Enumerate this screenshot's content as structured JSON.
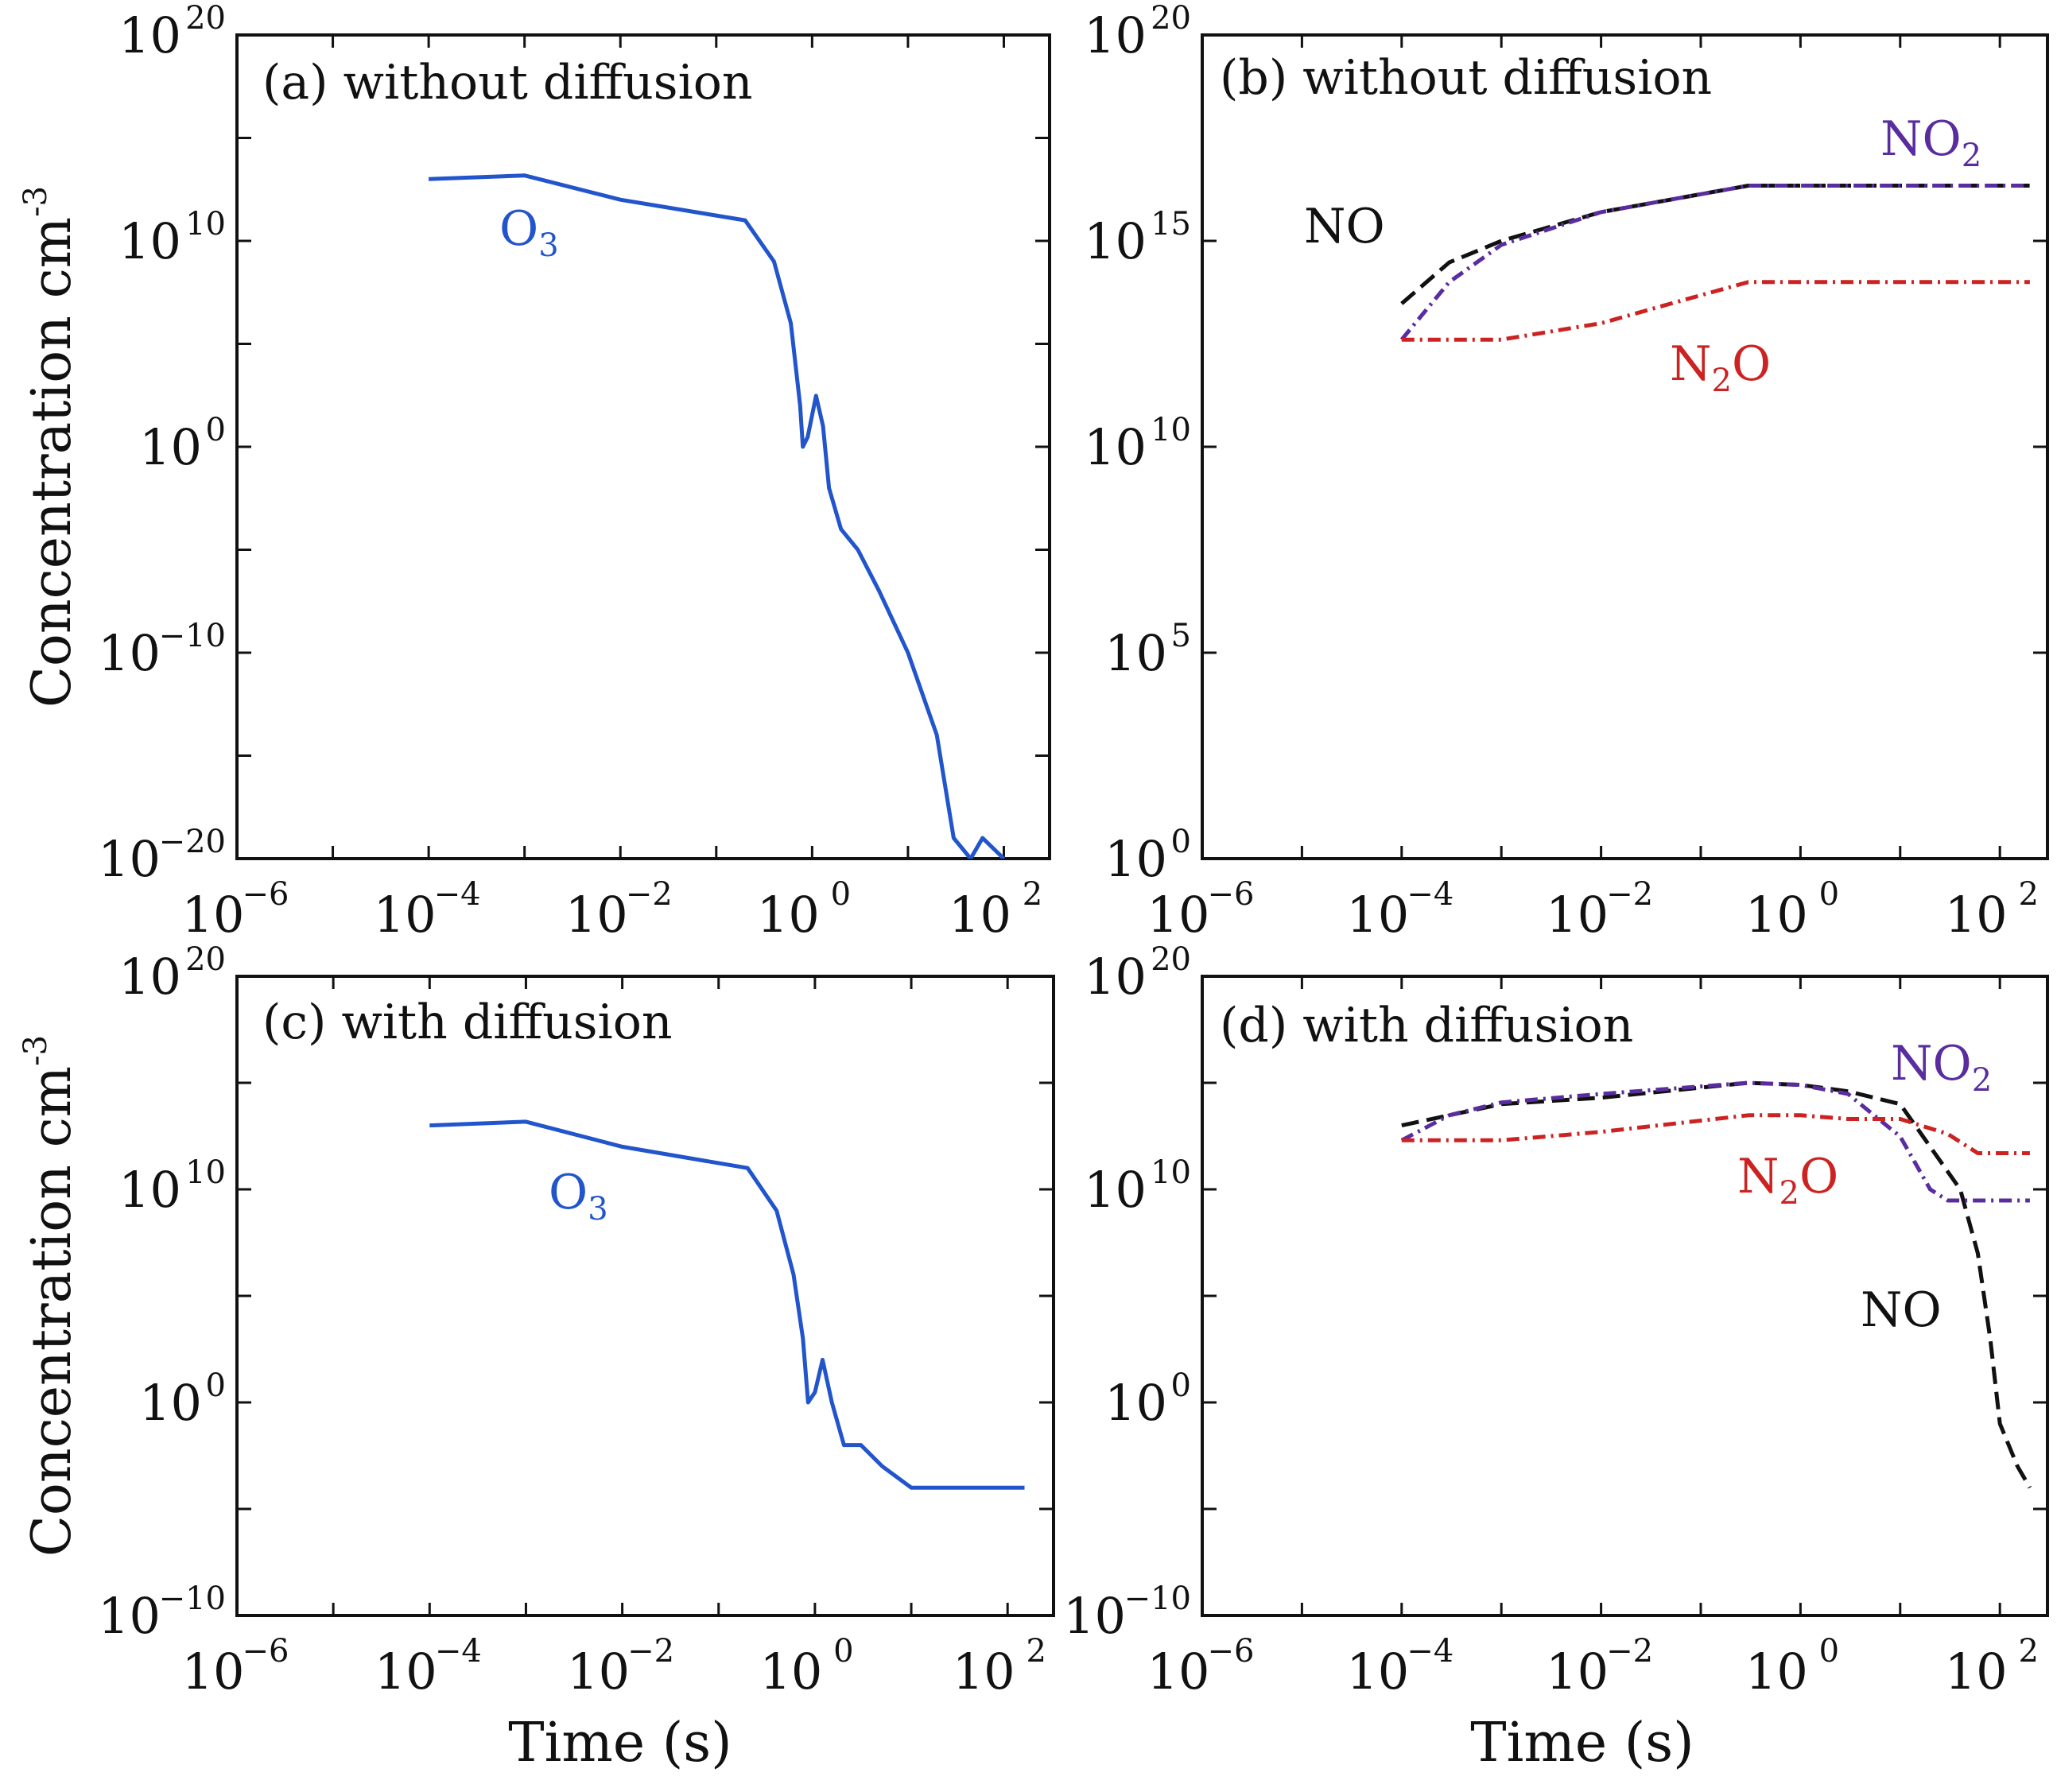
{
  "chart_data": [
    {
      "type": "line",
      "panel": "(a)",
      "title": "(a) without diffusion",
      "xlabel": "",
      "ylabel": "Concentration cm",
      "ylabel_exp": "-3",
      "xscale": "log",
      "yscale": "log",
      "xlim": [
        1e-06,
        300
      ],
      "ylim": [
        1e-20,
        1e+20
      ],
      "x_ticks": [
        "10|-6",
        "10|-4",
        "10|-2",
        "10|0",
        "10|2"
      ],
      "y_ticks": [
        "10|20",
        "10|10",
        "10|0",
        "10|-10",
        "10|-20"
      ],
      "series": [
        {
          "name": "O3",
          "label": "O",
          "label_sub": "3",
          "color": "#2255cc",
          "dash": "solid",
          "x": [
            0.0001,
            0.001,
            0.01,
            0.2,
            0.4,
            0.6,
            0.75,
            0.8,
            0.9,
            1.1,
            1.3,
            1.5,
            2,
            3,
            5,
            10,
            20,
            30,
            45,
            60,
            100
          ],
          "y": [
            10000000000000.0,
            15000000000000.0,
            1000000000000.0,
            100000000000.0,
            1000000000.0,
            1000000.0,
            100.0,
            1,
            3,
            300.0,
            10,
            0.01,
            0.0001,
            1e-05,
            1e-07,
            1e-10,
            1e-14,
            1e-19,
            1e-20,
            1e-19,
            1e-20
          ]
        }
      ]
    },
    {
      "type": "line",
      "panel": "(b)",
      "title": "(b) without diffusion",
      "xlabel": "",
      "ylabel": "",
      "xscale": "log",
      "yscale": "log",
      "xlim": [
        1e-06,
        300
      ],
      "ylim": [
        1,
        1e+20
      ],
      "x_ticks": [
        "10|-6",
        "10|-4",
        "10|-2",
        "10|0",
        "10|2"
      ],
      "y_ticks": [
        "10|20",
        "10|15",
        "10|10",
        "10|5",
        "10|0"
      ],
      "series": [
        {
          "name": "NO",
          "label": "NO",
          "label_sub": "",
          "color": "#111111",
          "dash": "22 10",
          "x": [
            0.0001,
            0.0003,
            0.001,
            0.01,
            0.3,
            1,
            10,
            200
          ],
          "y": [
            30000000000000.0,
            300000000000000.0,
            1000000000000000.0,
            5000000000000000.0,
            2.2e+16,
            2.2e+16,
            2.2e+16,
            2.2e+16
          ]
        },
        {
          "name": "NO2",
          "label": "NO",
          "label_sub": "2",
          "color": "#5a2d9e",
          "dash": "16 7 3 7",
          "x": [
            0.0001,
            0.0003,
            0.001,
            0.01,
            0.3,
            1,
            10,
            200
          ],
          "y": [
            4000000000000.0,
            100000000000000.0,
            800000000000000.0,
            5000000000000000.0,
            2.2e+16,
            2.2e+16,
            2.2e+16,
            2.2e+16
          ]
        },
        {
          "name": "N2O",
          "label": "N",
          "label_sub": "2",
          "label_tail": "O",
          "color": "#cc2222",
          "dash": "16 7 3 7",
          "x": [
            0.0001,
            0.001,
            0.01,
            0.05,
            0.3,
            1,
            10,
            200
          ],
          "y": [
            4000000000000.0,
            4000000000000.0,
            10000000000000.0,
            30000000000000.0,
            100000000000000.0,
            100000000000000.0,
            100000000000000.0,
            100000000000000.0
          ]
        }
      ]
    },
    {
      "type": "line",
      "panel": "(c)",
      "title": "(c) with diffusion",
      "xlabel": "Time (s)",
      "ylabel": "Concentration cm",
      "ylabel_exp": "-3",
      "xscale": "log",
      "yscale": "log",
      "xlim": [
        1e-06,
        300
      ],
      "ylim": [
        1e-10,
        1e+20
      ],
      "x_ticks": [
        "10|-6",
        "10|-4",
        "10|-2",
        "10|0",
        "10|2"
      ],
      "y_ticks": [
        "10|20",
        "10|10",
        "10|0",
        "10|-10"
      ],
      "series": [
        {
          "name": "O3",
          "label": "O",
          "label_sub": "3",
          "color": "#2255cc",
          "dash": "solid",
          "x": [
            0.0001,
            0.001,
            0.01,
            0.2,
            0.4,
            0.6,
            0.75,
            0.85,
            1,
            1.2,
            1.5,
            2,
            3,
            5,
            10,
            20,
            50,
            150
          ],
          "y": [
            10000000000000.0,
            15000000000000.0,
            1000000000000.0,
            100000000000.0,
            1000000000.0,
            1000000.0,
            1000.0,
            1,
            3,
            100,
            1,
            0.01,
            0.01,
            0.001,
            0.0001,
            0.0001,
            0.0001,
            0.0001
          ]
        }
      ]
    },
    {
      "type": "line",
      "panel": "(d)",
      "title": "(d) with diffusion",
      "xlabel": "Time (s)",
      "ylabel": "",
      "xscale": "log",
      "yscale": "log",
      "xlim": [
        1e-06,
        300
      ],
      "ylim": [
        1e-10,
        1e+20
      ],
      "x_ticks": [
        "10|-6",
        "10|-4",
        "10|-2",
        "10|0",
        "10|2"
      ],
      "y_ticks": [
        "10|20",
        "10|10",
        "10|0",
        "10|-10"
      ],
      "series": [
        {
          "name": "NO",
          "label": "NO",
          "label_sub": "",
          "color": "#111111",
          "dash": "22 10",
          "x": [
            0.0001,
            0.001,
            0.01,
            0.3,
            1,
            3,
            10,
            20,
            40,
            60,
            80,
            100,
            150,
            200
          ],
          "y": [
            10000000000000.0,
            100000000000000.0,
            200000000000000.0,
            1000000000000000.0,
            800000000000000.0,
            400000000000000.0,
            100000000000000.0,
            1000000000000.0,
            10000000000.0,
            10000000.0,
            1000.0,
            0.1,
            0.001,
            0.0001
          ]
        },
        {
          "name": "NO2",
          "label": "NO",
          "label_sub": "2",
          "color": "#5a2d9e",
          "dash": "16 7 3 7",
          "x": [
            0.0001,
            0.0003,
            0.001,
            0.01,
            0.3,
            1,
            3,
            10,
            20,
            30,
            200
          ],
          "y": [
            2000000000000.0,
            30000000000000.0,
            120000000000000.0,
            300000000000000.0,
            1000000000000000.0,
            800000000000000.0,
            300000000000000.0,
            3000000000000.0,
            10000000000.0,
            3000000000.0,
            3000000000.0
          ]
        },
        {
          "name": "N2O",
          "label": "N",
          "label_sub": "2",
          "label_tail": "O",
          "color": "#cc2222",
          "dash": "16 7 3 7",
          "x": [
            0.0001,
            0.001,
            0.01,
            0.3,
            1,
            3,
            10,
            30,
            60,
            200
          ],
          "y": [
            2000000000000.0,
            2000000000000.0,
            5000000000000.0,
            30000000000000.0,
            30000000000000.0,
            20000000000000.0,
            20000000000000.0,
            4000000000000.0,
            500000000000.0,
            500000000000.0
          ]
        }
      ]
    }
  ]
}
